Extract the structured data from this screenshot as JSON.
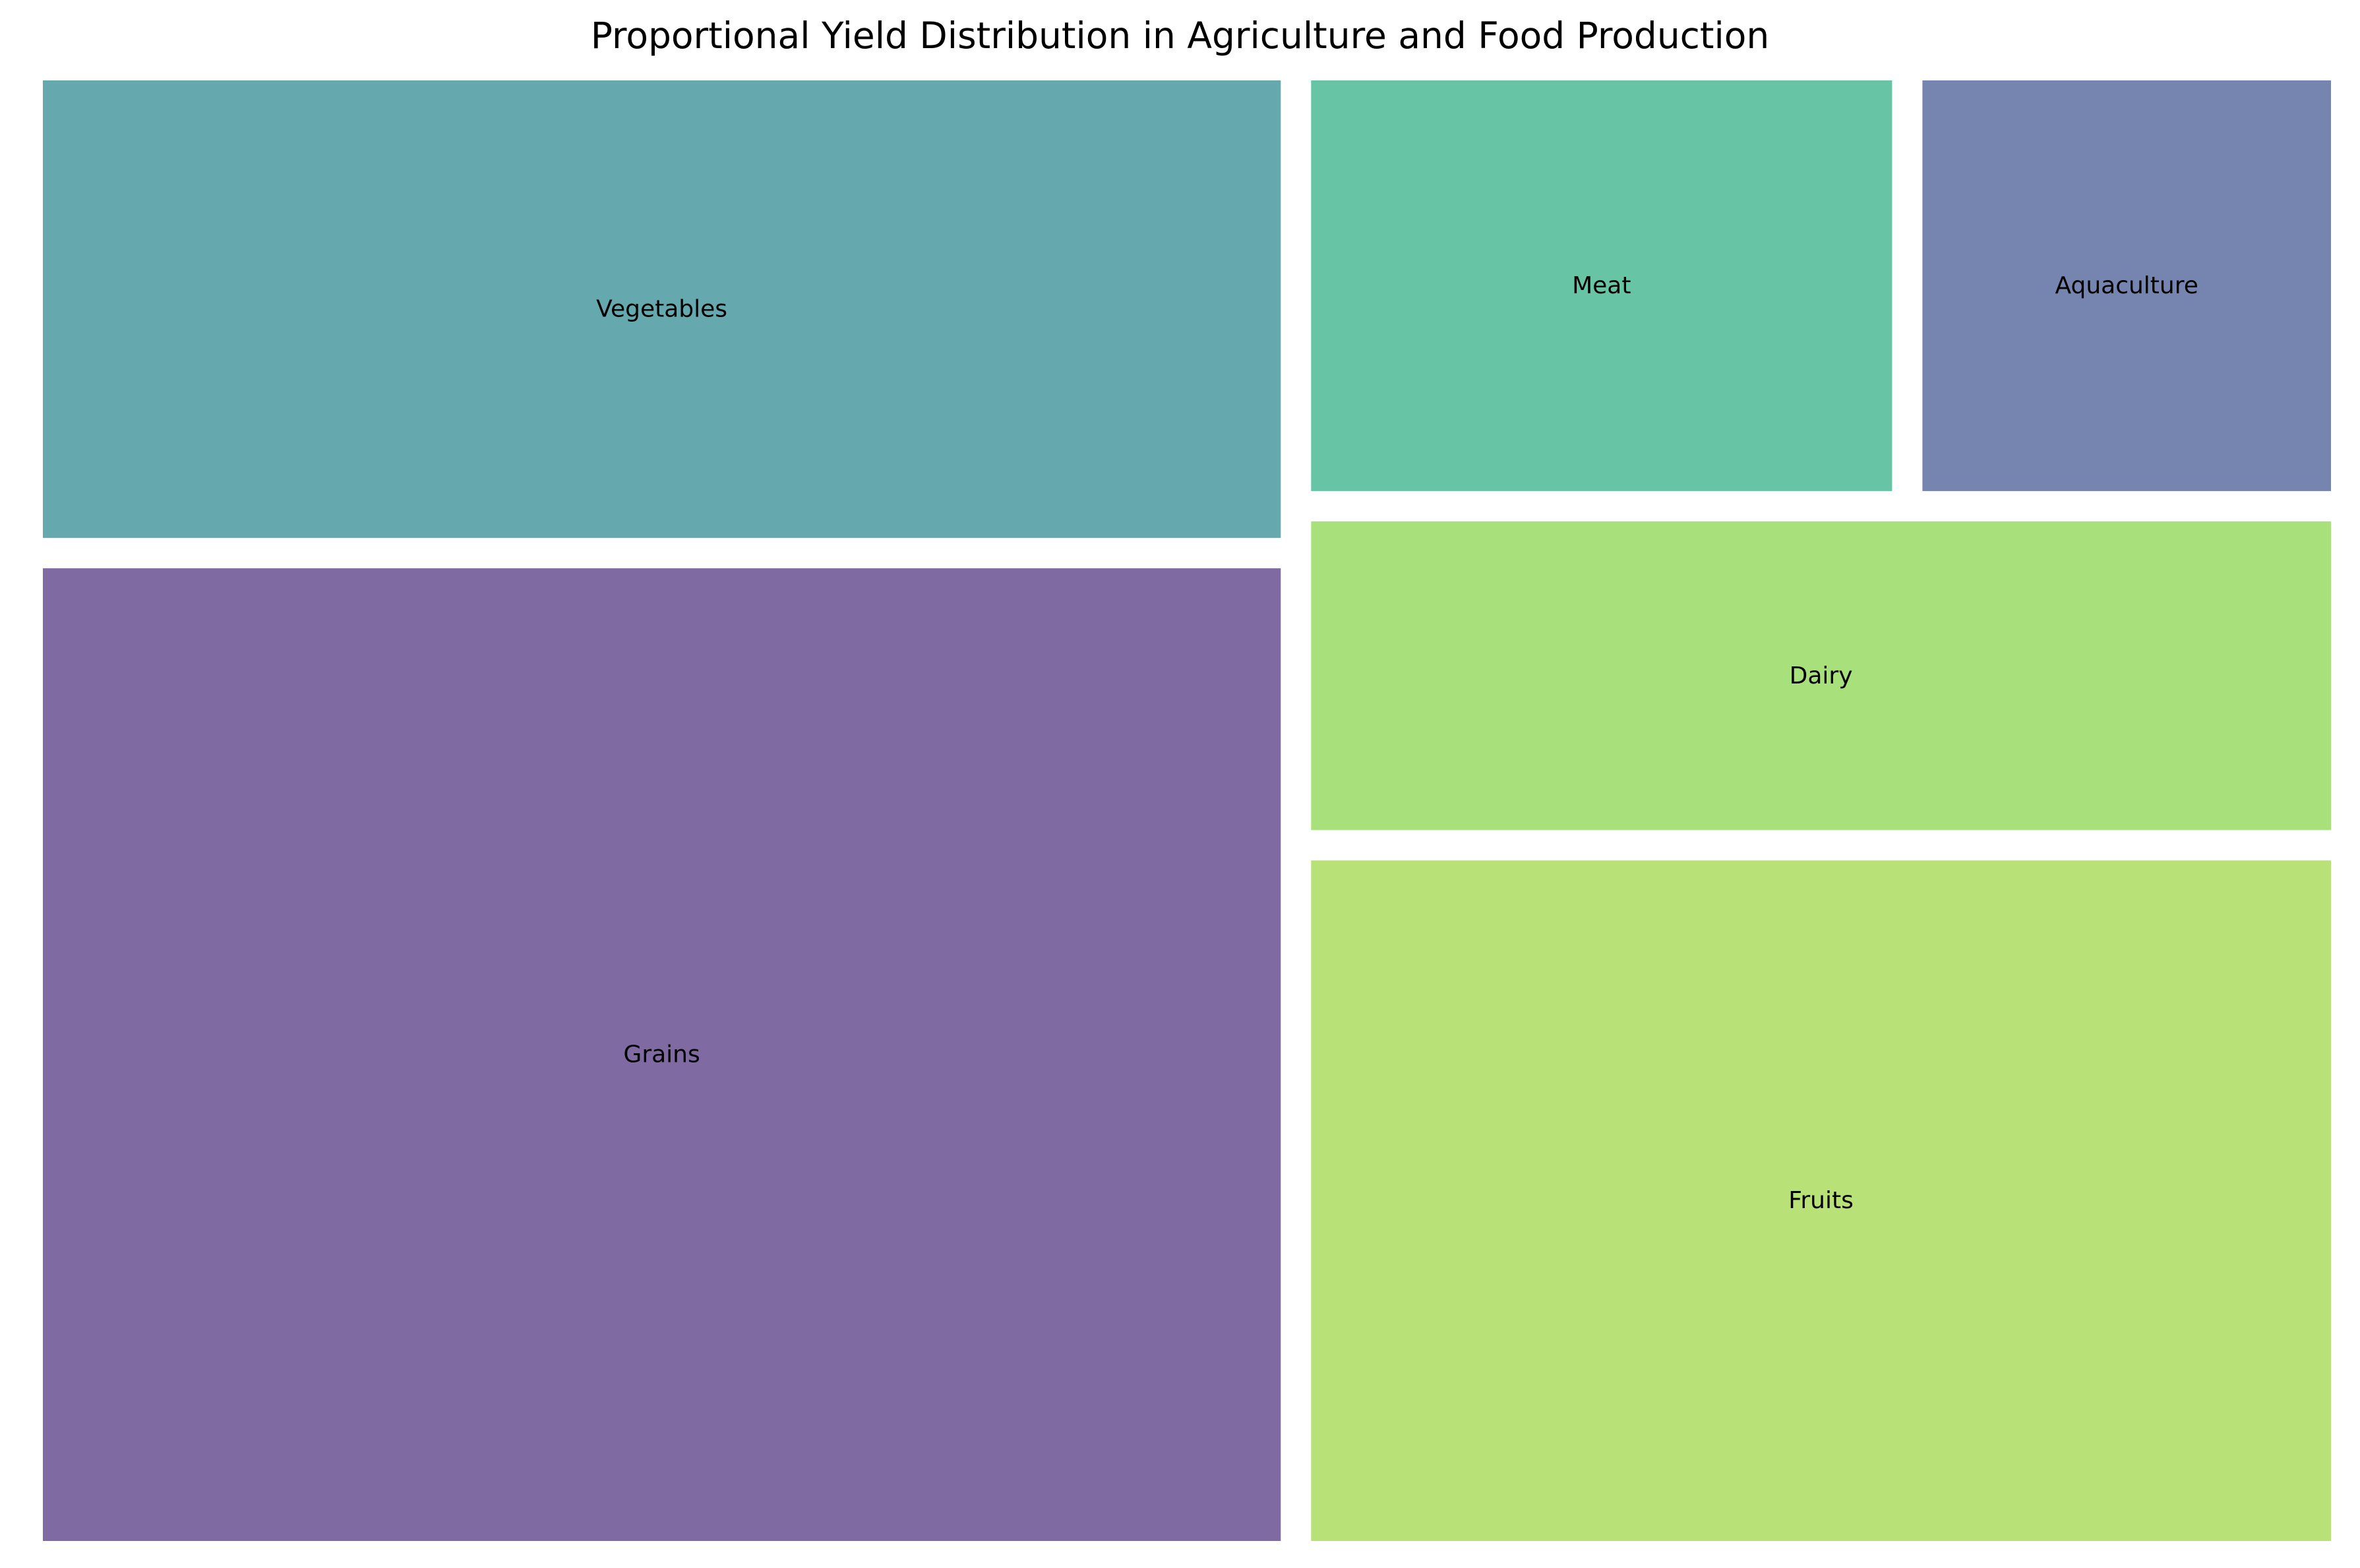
{
  "chart_data": {
    "type": "treemap",
    "title": "Proportional Yield Distribution in Agriculture and Food Production",
    "categories": [
      "Grains",
      "Vegetables",
      "Fruits",
      "Dairy",
      "Meat",
      "Aquaculture"
    ],
    "values": [
      36.8,
      17.9,
      21.6,
      10.3,
      7.8,
      5.6
    ],
    "colors": [
      "#7f6aa1",
      "#65a9ae",
      "#b8e278",
      "#a8e07c",
      "#67c5a5",
      "#7685af"
    ],
    "legend": false,
    "grid": false
  }
}
